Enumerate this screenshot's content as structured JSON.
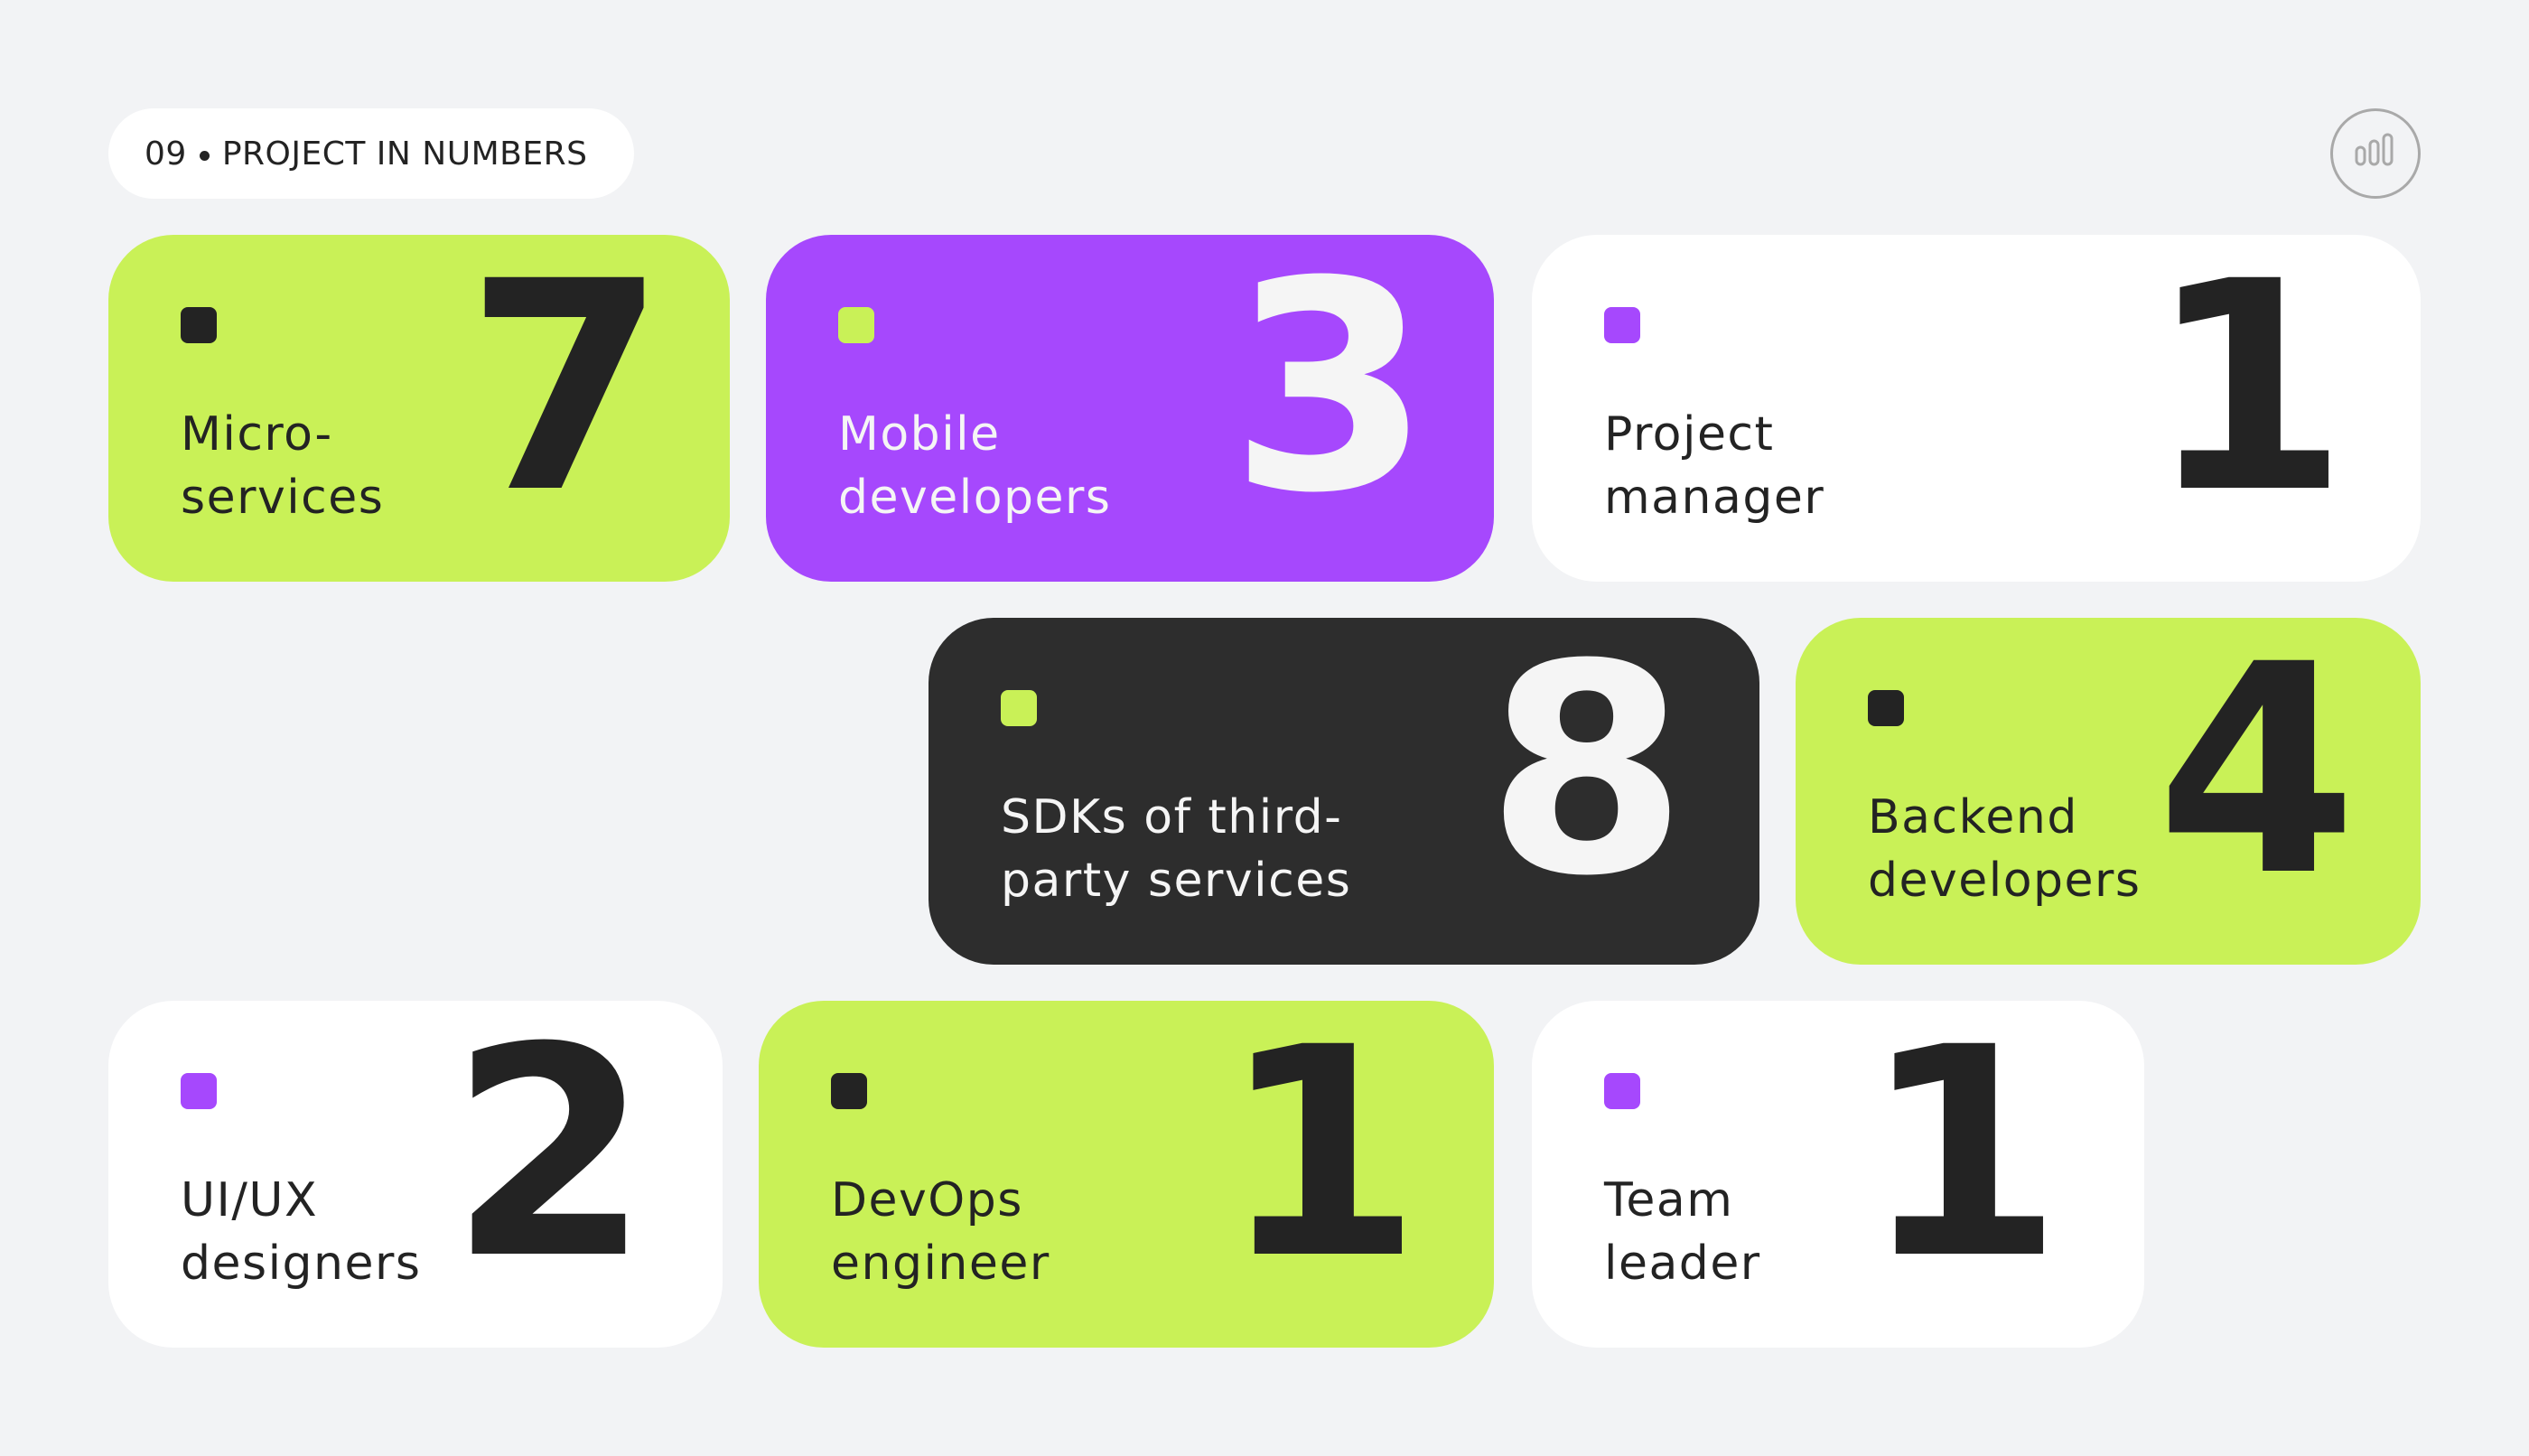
{
  "header": {
    "number": "09",
    "title": "PROJECT IN NUMBERS"
  },
  "colors": {
    "lime": "#c9f157",
    "purple": "#a648fd",
    "dark": "#2d2d2d",
    "white": "#ffffff",
    "background": "#f2f3f5",
    "text_dark": "#232323"
  },
  "icons": {
    "corner": "bar-chart-icon"
  },
  "cards": [
    {
      "value": "7",
      "line1": "Micro-",
      "line2": "services",
      "bg": "lime",
      "square": "dark"
    },
    {
      "value": "3",
      "line1": "Mobile",
      "line2": "developers",
      "bg": "purple",
      "square": "lime"
    },
    {
      "value": "1",
      "line1": "Project",
      "line2": "manager",
      "bg": "white",
      "square": "purple"
    },
    {
      "value": "8",
      "line1": "SDKs of third-",
      "line2": "party services",
      "bg": "dark",
      "square": "lime"
    },
    {
      "value": "4",
      "line1": "Backend",
      "line2": "developers",
      "bg": "lime",
      "square": "dark"
    },
    {
      "value": "2",
      "line1": "UI/UX",
      "line2": "designers",
      "bg": "white",
      "square": "purple"
    },
    {
      "value": "1",
      "line1": "DevOps",
      "line2": "engineer",
      "bg": "lime",
      "square": "dark"
    },
    {
      "value": "1",
      "line1": "Team",
      "line2": "leader",
      "bg": "white",
      "square": "purple"
    }
  ]
}
